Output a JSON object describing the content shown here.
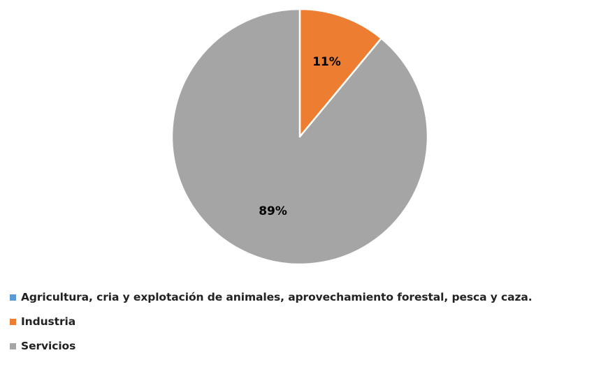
{
  "chart_data": {
    "type": "pie",
    "slices": [
      {
        "label": "Agricultura, cria y explotación de animales, aprovechamiento forestal, pesca y caza.",
        "value": 0,
        "color": "#5B9BD5"
      },
      {
        "label": "Industria",
        "value": 11,
        "display": "11%",
        "color": "#ED7D31"
      },
      {
        "label": "Servicios",
        "value": 89,
        "display": "89%",
        "color": "#A5A5A5"
      }
    ],
    "legend_position": "bottom-left"
  }
}
